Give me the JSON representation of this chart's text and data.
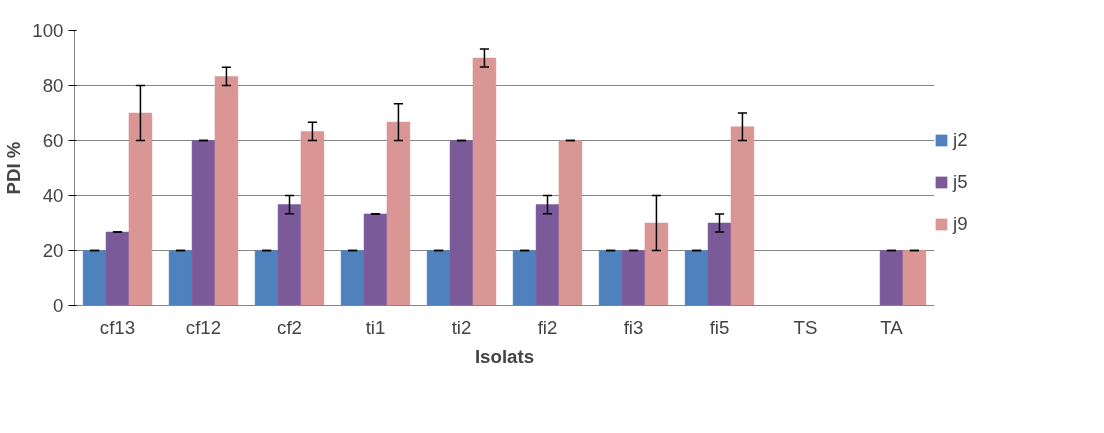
{
  "chart_data": {
    "type": "bar",
    "xlabel": "Isolats",
    "ylabel": "PDI %",
    "categories": [
      "cf13",
      "cf12",
      "cf2",
      "ti1",
      "ti2",
      "fi2",
      "fi3",
      "fi5",
      "TS",
      "TA"
    ],
    "series": [
      {
        "name": "j2",
        "color": "#4f81bd",
        "values": [
          20,
          20,
          20,
          20,
          20,
          20,
          20,
          20,
          0,
          0
        ],
        "errors": [
          0,
          0,
          0,
          0,
          0,
          0,
          0,
          0,
          null,
          null
        ]
      },
      {
        "name": "j5",
        "color": "#7b5a9a",
        "values": [
          26.7,
          60,
          36.7,
          33.3,
          60,
          36.7,
          20,
          30,
          0,
          20
        ],
        "errors": [
          0,
          0,
          3.3,
          0,
          0,
          3.3,
          0,
          3.3,
          null,
          0
        ]
      },
      {
        "name": "j9",
        "color": "#d99694",
        "values": [
          70,
          83.3,
          63.3,
          66.7,
          90,
          60,
          30,
          65,
          0,
          20
        ],
        "errors": [
          10,
          3.3,
          3.3,
          6.7,
          3.3,
          0,
          10,
          5,
          null,
          0
        ]
      }
    ],
    "ylim": [
      0,
      100
    ],
    "yticks": [
      0,
      20,
      40,
      60,
      80,
      100
    ],
    "grid": "y",
    "legend": "right"
  }
}
